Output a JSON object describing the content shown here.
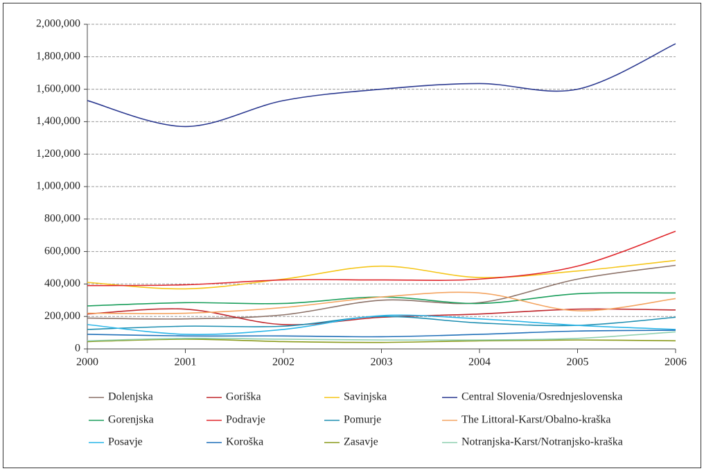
{
  "chart_data": {
    "type": "line",
    "x": [
      2000,
      2001,
      2002,
      2003,
      2004,
      2005,
      2006
    ],
    "xlim": [
      2000,
      2006
    ],
    "xticks": [
      2000,
      2001,
      2002,
      2003,
      2004,
      2005,
      2006
    ],
    "ylim": [
      0,
      2000000
    ],
    "yticks": [
      0,
      {
        "value": 200000,
        "label": "200,000"
      },
      {
        "value": 400000,
        "label": "400,000"
      },
      {
        "value": 600000,
        "label": "600,000"
      },
      {
        "value": 800000,
        "label": "800,000"
      },
      {
        "value": 1000000,
        "label": "1,000,000"
      },
      {
        "value": 1200000,
        "label": "1,200,000"
      },
      {
        "value": 1400000,
        "label": "1,400,000"
      },
      {
        "value": 1600000,
        "label": "1,600,000"
      },
      {
        "value": 1800000,
        "label": "1,800,000"
      },
      {
        "value": 2000000,
        "label": "2,000,000"
      }
    ],
    "grid": true,
    "legend": "bottom",
    "series": [
      {
        "name": "Dolenjska",
        "color": "#8c7268",
        "values": [
          190000,
          185000,
          210000,
          300000,
          285000,
          430000,
          515000
        ]
      },
      {
        "name": "Goriška",
        "color": "#c0282d",
        "values": [
          215000,
          245000,
          150000,
          195000,
          215000,
          245000,
          240000
        ]
      },
      {
        "name": "Savinjska",
        "color": "#f5c518",
        "values": [
          410000,
          370000,
          430000,
          510000,
          440000,
          480000,
          545000
        ]
      },
      {
        "name": "Central Slovenia/Osrednjeslovenska",
        "color": "#2b3990",
        "values": [
          1530000,
          1370000,
          1530000,
          1600000,
          1635000,
          1600000,
          1880000
        ]
      },
      {
        "name": "Gorenjska",
        "color": "#1a9e5b",
        "values": [
          265000,
          285000,
          280000,
          320000,
          280000,
          340000,
          345000
        ]
      },
      {
        "name": "Podravje",
        "color": "#e0262b",
        "values": [
          390000,
          395000,
          425000,
          425000,
          430000,
          510000,
          725000
        ]
      },
      {
        "name": "Pomurje",
        "color": "#1c8db0",
        "values": [
          120000,
          140000,
          140000,
          200000,
          160000,
          145000,
          195000
        ]
      },
      {
        "name": "The Littoral-Karst/Obalno-kraška",
        "color": "#f4a460",
        "values": [
          220000,
          220000,
          255000,
          320000,
          345000,
          235000,
          310000
        ]
      },
      {
        "name": "Posavje",
        "color": "#29b5e8",
        "values": [
          150000,
          90000,
          120000,
          205000,
          185000,
          145000,
          120000
        ]
      },
      {
        "name": "Koroška",
        "color": "#1f6fb8",
        "values": [
          90000,
          80000,
          80000,
          75000,
          90000,
          110000,
          115000
        ]
      },
      {
        "name": "Zasavje",
        "color": "#8a9a1b",
        "values": [
          45000,
          60000,
          45000,
          40000,
          50000,
          55000,
          50000
        ]
      },
      {
        "name": "Notranjska-Karst/Notranjsko-kraška",
        "color": "#8fcfb0",
        "values": [
          50000,
          65000,
          60000,
          55000,
          55000,
          65000,
          105000
        ]
      }
    ]
  }
}
